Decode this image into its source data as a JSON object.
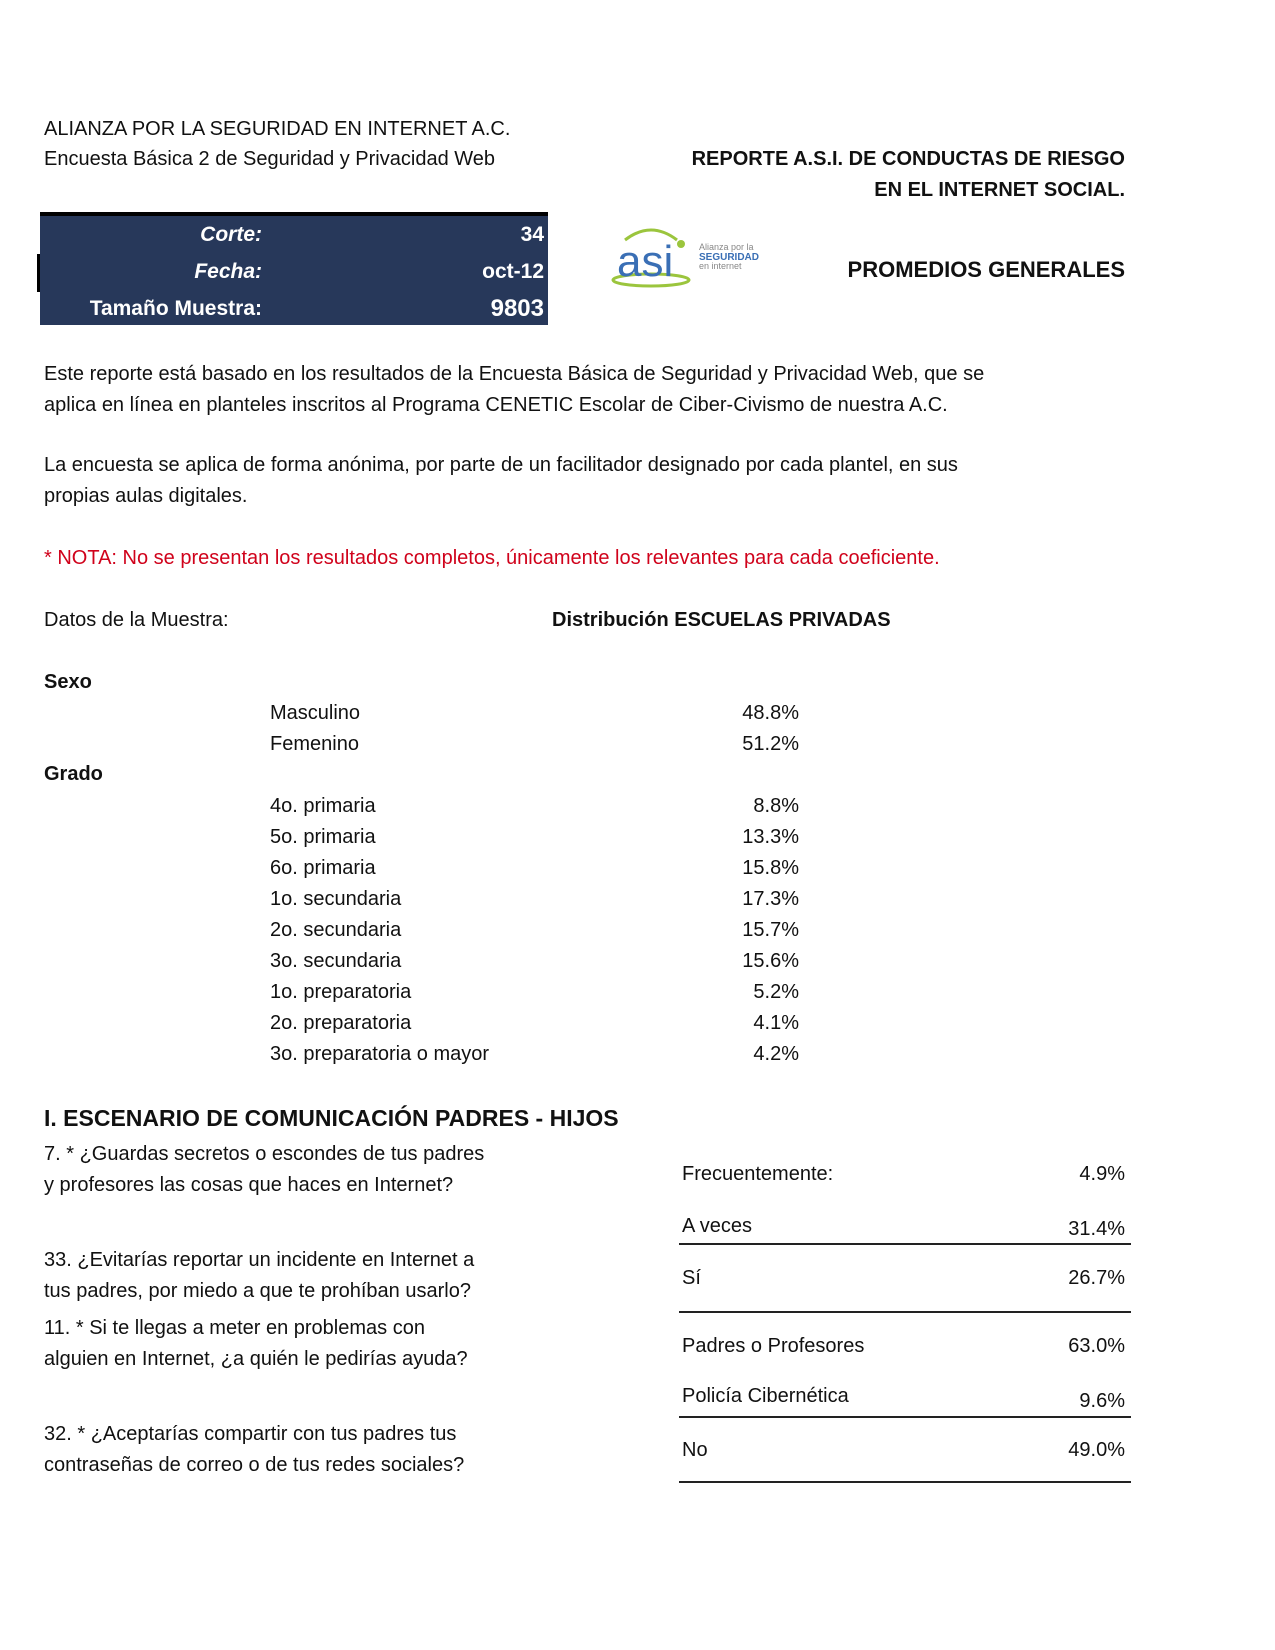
{
  "header": {
    "org": "ALIANZA POR LA SEGURIDAD EN INTERNET A.C.",
    "survey": "Encuesta Básica 2 de Seguridad y Privacidad Web",
    "report_title_1": "REPORTE A.S.I. DE CONDUCTAS DE RIESGO",
    "report_title_2": "EN EL INTERNET SOCIAL.",
    "subtitle": "PROMEDIOS GENERALES"
  },
  "info_box": {
    "corte_label": "Corte:",
    "corte_value": "34",
    "fecha_label": "Fecha:",
    "fecha_value": "oct-12",
    "muestra_label": "Tamaño Muestra:",
    "muestra_value": "9803"
  },
  "logo": {
    "mark": "asi",
    "line1": "Alianza por la",
    "line2": "SEGURIDAD",
    "line3": "en internet",
    "colors": {
      "blue": "#3a6fb5",
      "green": "#9bc53d"
    }
  },
  "intro": {
    "p1_l1": "Este reporte está basado en los resultados de la Encuesta Básica de Seguridad y Privacidad Web, que se",
    "p1_l2": "aplica en línea en planteles inscritos al Programa CENETIC Escolar de Ciber-Civismo de nuestra A.C.",
    "p2_l1": "La encuesta se aplica de forma anónima, por parte de un facilitador designado por cada plantel, en sus",
    "p2_l2": "propias aulas digitales.",
    "nota": "* NOTA: No se presentan los resultados completos, únicamente los relevantes para cada coeficiente."
  },
  "sample": {
    "label": "Datos de la Muestra:",
    "distribution_title": "Distribución ESCUELAS PRIVADAS",
    "sexo_label": "Sexo",
    "sexo": [
      {
        "label": "Masculino",
        "value": "48.8%"
      },
      {
        "label": "Femenino",
        "value": "51.2%"
      }
    ],
    "grado_label": "Grado",
    "grado": [
      {
        "label": "4o. primaria",
        "value": "8.8%"
      },
      {
        "label": "5o. primaria",
        "value": "13.3%"
      },
      {
        "label": "6o. primaria",
        "value": "15.8%"
      },
      {
        "label": "1o. secundaria",
        "value": "17.3%"
      },
      {
        "label": "2o. secundaria",
        "value": "15.7%"
      },
      {
        "label": "3o. secundaria",
        "value": "15.6%"
      },
      {
        "label": "1o. preparatoria",
        "value": "5.2%"
      },
      {
        "label": "2o. preparatoria",
        "value": "4.1%"
      },
      {
        "label": "3o. preparatoria o mayor",
        "value": "4.2%"
      }
    ]
  },
  "section1": {
    "title": "I. ESCENARIO DE COMUNICACIÓN PADRES - HIJOS",
    "questions": [
      {
        "l1": "7. * ¿Guardas secretos o escondes de tus padres",
        "l2": "y profesores las cosas que haces en Internet?"
      },
      {
        "l1": "33. ¿Evitarías reportar un incidente en Internet a",
        "l2": "tus padres, por miedo a que te prohíban usarlo?"
      },
      {
        "l1": "11. * Si te llegas a meter en problemas con",
        "l2": "alguien en Internet, ¿a quién le pedirías ayuda?"
      },
      {
        "l1": "32. * ¿Aceptarías compartir con tus padres tus",
        "l2": "contraseñas de correo o de tus redes sociales?"
      }
    ],
    "answers": [
      {
        "label": "Frecuentemente:",
        "value": "4.9%"
      },
      {
        "label": "A veces",
        "value": "31.4%"
      },
      {
        "label": "Sí",
        "value": "26.7%"
      },
      {
        "label": "Padres o Profesores",
        "value": "63.0%"
      },
      {
        "label": "Policía Cibernética",
        "value": "9.6%"
      },
      {
        "label": "No",
        "value": "49.0%"
      }
    ]
  }
}
